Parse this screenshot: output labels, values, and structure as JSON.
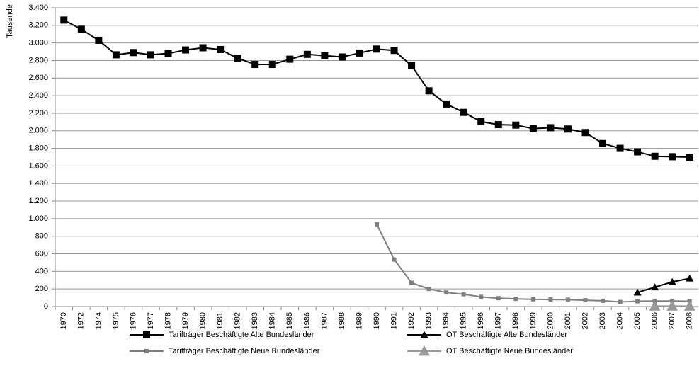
{
  "chart_data": {
    "type": "line",
    "y_label": "Tausende",
    "categories": [
      "1970",
      "1972",
      "1974",
      "1975",
      "1976",
      "1977",
      "1978",
      "1979",
      "1980",
      "1981",
      "1982",
      "1983",
      "1984",
      "1985",
      "1986",
      "1987",
      "1988",
      "1989",
      "1990",
      "1991",
      "1992",
      "1993",
      "1994",
      "1995",
      "1996",
      "1997",
      "1998",
      "1999",
      "2000",
      "2001",
      "2002",
      "2003",
      "2004",
      "2005",
      "2006",
      "2007",
      "2008"
    ],
    "series": [
      {
        "name": "Tarifträger Beschäftigte Alte Bundesländer",
        "color": "#000000",
        "marker": "square",
        "values": [
          3260,
          3155,
          3030,
          2865,
          2890,
          2865,
          2880,
          2920,
          2945,
          2925,
          2825,
          2755,
          2755,
          2815,
          2870,
          2855,
          2840,
          2885,
          2930,
          2915,
          2740,
          2455,
          2305,
          2210,
          2105,
          2070,
          2065,
          2025,
          2035,
          2020,
          1980,
          1855,
          1800,
          1760,
          1710,
          1705,
          1700
        ]
      },
      {
        "name": "OT Beschäftigte Alte Bundesländer",
        "color": "#000000",
        "marker": "triangle",
        "values": [
          null,
          null,
          null,
          null,
          null,
          null,
          null,
          null,
          null,
          null,
          null,
          null,
          null,
          null,
          null,
          null,
          null,
          null,
          null,
          null,
          null,
          null,
          null,
          null,
          null,
          null,
          null,
          null,
          null,
          null,
          null,
          null,
          null,
          160,
          220,
          280,
          320
        ]
      },
      {
        "name": "Tarifträger Beschäftigte Neue Bundesländer",
        "color": "#808080",
        "marker": "small-square",
        "values": [
          null,
          null,
          null,
          null,
          null,
          null,
          null,
          null,
          null,
          null,
          null,
          null,
          null,
          null,
          null,
          null,
          null,
          null,
          935,
          535,
          270,
          200,
          160,
          140,
          110,
          95,
          88,
          82,
          80,
          78,
          72,
          65,
          52,
          60,
          62,
          62,
          60
        ]
      },
      {
        "name": "OT Beschäftigte Neue Bundesländer",
        "color": "#999999",
        "marker": "big-triangle",
        "values": [
          null,
          null,
          null,
          null,
          null,
          null,
          null,
          null,
          null,
          null,
          null,
          null,
          null,
          null,
          null,
          null,
          null,
          null,
          null,
          null,
          null,
          null,
          null,
          null,
          null,
          null,
          null,
          null,
          null,
          null,
          null,
          null,
          null,
          null,
          5,
          5,
          5
        ]
      }
    ],
    "ylim": [
      0,
      3400
    ],
    "yticks": [
      0,
      {
        "value": 200,
        "label": "200"
      },
      {
        "value": 400,
        "label": "400"
      },
      {
        "value": 600,
        "label": "600"
      },
      {
        "value": 800,
        "label": "800"
      },
      {
        "value": 1000,
        "label": "1.000"
      },
      {
        "value": 1200,
        "label": "1.200"
      },
      {
        "value": 1400,
        "label": "1.400"
      },
      {
        "value": 1600,
        "label": "1.600"
      },
      {
        "value": 1800,
        "label": "1.800"
      },
      {
        "value": 2000,
        "label": "2.000"
      },
      {
        "value": 2200,
        "label": "2.200"
      },
      {
        "value": 2400,
        "label": "2.400"
      },
      {
        "value": 2600,
        "label": "2.600"
      },
      {
        "value": 2800,
        "label": "2.800"
      },
      {
        "value": 3000,
        "label": "3.000"
      },
      {
        "value": 3200,
        "label": "3.200"
      },
      {
        "value": 3400,
        "label": "3.400"
      }
    ],
    "grid": true,
    "legend": "bottom"
  }
}
